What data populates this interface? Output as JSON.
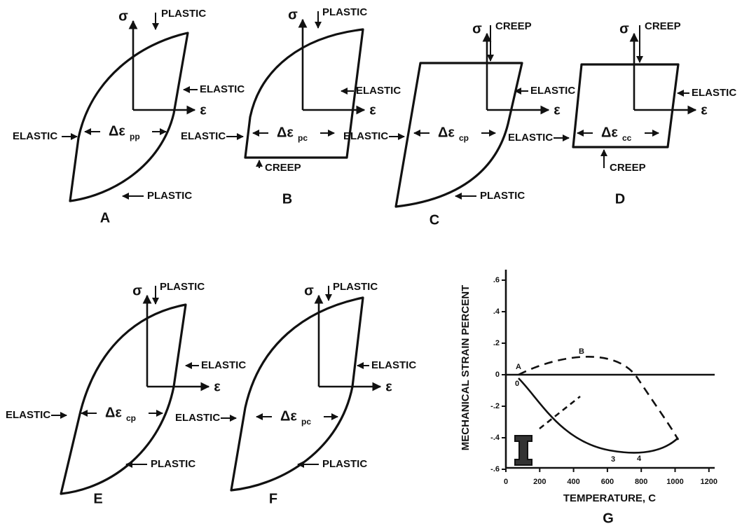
{
  "panels": [
    {
      "label": "A",
      "sigma": "σ",
      "epsilon": "ε",
      "delta": "Δε",
      "subscript": "pp",
      "annotations": [
        "PLASTIC",
        "ELASTIC",
        "ELASTIC",
        "PLASTIC"
      ]
    },
    {
      "label": "B",
      "sigma": "σ",
      "epsilon": "ε",
      "delta": "Δε",
      "subscript": "pc",
      "annotations": [
        "PLASTIC",
        "ELASTIC",
        "ELASTIC",
        "CREEP"
      ]
    },
    {
      "label": "C",
      "sigma": "σ",
      "epsilon": "ε",
      "delta": "Δε",
      "subscript": "cp",
      "annotations": [
        "CREEP",
        "ELASTIC",
        "ELASTIC",
        "PLASTIC"
      ]
    },
    {
      "label": "D",
      "sigma": "σ",
      "epsilon": "ε",
      "delta": "Δε",
      "subscript": "cc",
      "annotations": [
        "CREEP",
        "ELASTIC",
        "ELASTIC",
        "CREEP"
      ]
    },
    {
      "label": "E",
      "sigma": "σ",
      "epsilon": "ε",
      "delta": "Δε",
      "subscript": "cp",
      "annotations": [
        "PLASTIC",
        "ELASTIC",
        "ELASTIC",
        "PLASTIC"
      ]
    },
    {
      "label": "F",
      "sigma": "σ",
      "epsilon": "ε",
      "delta": "Δε",
      "subscript": "pc",
      "annotations": [
        "PLASTIC",
        "ELASTIC",
        "ELASTIC",
        "PLASTIC"
      ]
    }
  ],
  "panel_g": {
    "label": "G",
    "x_title": "TEMPERATURE, C",
    "y_title": "MECHANICAL STRAIN PERCENT",
    "xticks": [
      "0",
      "200",
      "400",
      "600",
      "800",
      "1000",
      "1200"
    ],
    "yticks": [
      ".6",
      ".4",
      ".2",
      "0",
      "-.2",
      "-.4",
      "-.6"
    ],
    "point_labels": [
      "B",
      "A",
      "0",
      "3",
      "4"
    ]
  }
}
